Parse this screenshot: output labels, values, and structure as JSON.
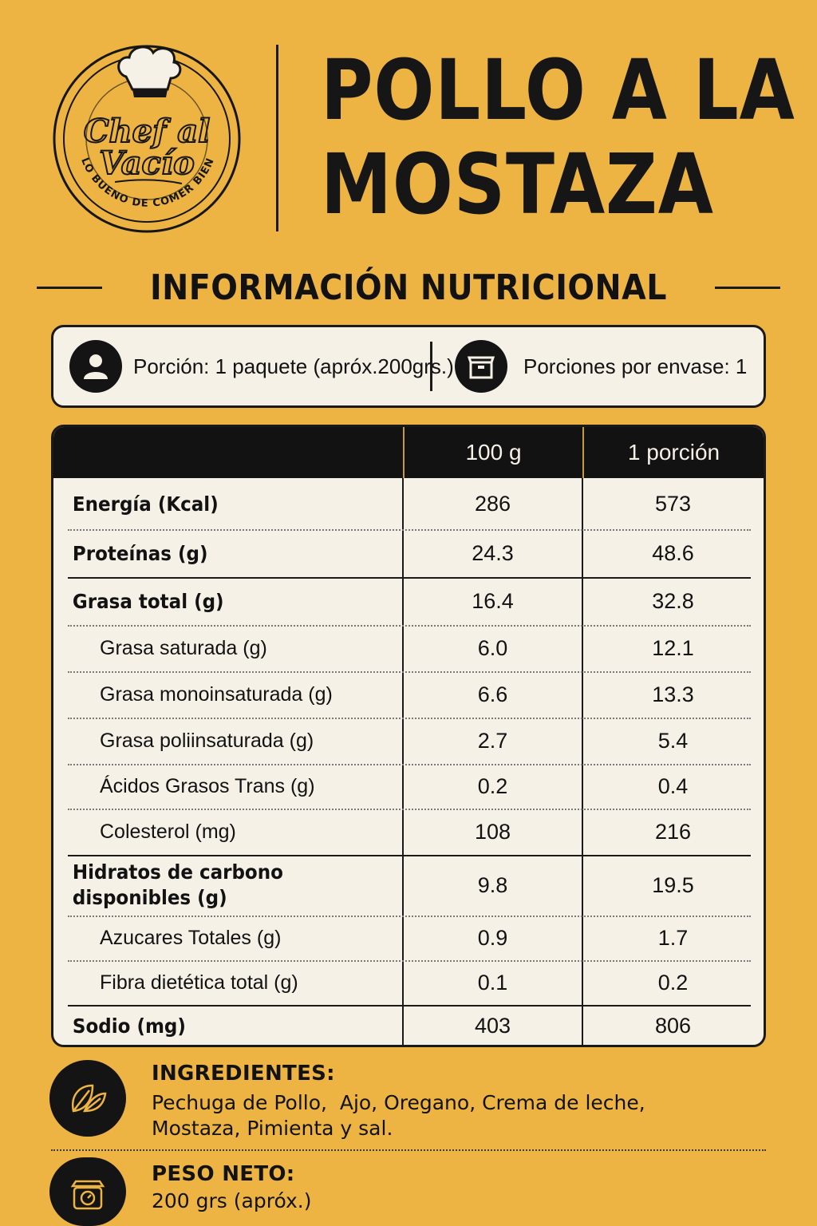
{
  "logo": {
    "brand_line1": "Chef al",
    "brand_line2": "Vacío",
    "tagline": "LO BUENO DE COMER BIEN"
  },
  "title": {
    "line1": "POLLO A LA",
    "line2": "MOSTAZA"
  },
  "section_title": "INFORMACIÓN NUTRICIONAL",
  "serving": {
    "portion_icon": "user-icon",
    "portion_text": "Porción: 1 paquete (apróx.200grs.)",
    "per_pack_icon": "box-icon",
    "per_pack_text": "Porciones por envase: 1"
  },
  "table": {
    "headers": [
      "",
      "100 g",
      "1 porción"
    ],
    "rows": [
      {
        "name": "Energía (Kcal)",
        "v100": "286",
        "vpor": "573"
      },
      {
        "name": "Proteínas (g)",
        "v100": "24.3",
        "vpor": "48.6"
      },
      {
        "name": "Grasa total (g)",
        "v100": "16.4",
        "vpor": "32.8"
      },
      {
        "name": "Grasa saturada (g)",
        "v100": "6.0",
        "vpor": "12.1"
      },
      {
        "name": "Grasa monoinsaturada (g)",
        "v100": "6.6",
        "vpor": "13.3"
      },
      {
        "name": "Grasa poliinsaturada (g)",
        "v100": "2.7",
        "vpor": "5.4"
      },
      {
        "name": "Ácidos Grasos Trans (g)",
        "v100": "0.2",
        "vpor": "0.4"
      },
      {
        "name": "Colesterol (mg)",
        "v100": "108",
        "vpor": "216"
      },
      {
        "name_line1": "Hidratos de carbono",
        "name_line2": "disponibles (g)",
        "v100": "9.8",
        "vpor": "19.5"
      },
      {
        "name": "Azucares Totales (g)",
        "v100": "0.9",
        "vpor": "1.7"
      },
      {
        "name": "Fibra dietética total (g)",
        "v100": "0.1",
        "vpor": "0.2"
      },
      {
        "name": "Sodio (mg)",
        "v100": "403",
        "vpor": "806"
      }
    ]
  },
  "ingredients": {
    "icon": "leaf-icon",
    "label": "INGREDIENTES:",
    "line1": "Pechuga de Pollo,  Ajo, Oregano, Crema de leche,",
    "line2": "Mostaza, Pimienta y sal."
  },
  "net_weight": {
    "icon": "scale-icon",
    "label": "PESO NETO:",
    "value": "200 grs (apróx.)"
  },
  "colors": {
    "background": "#EDB443",
    "panel": "#F6F1E7",
    "ink": "#121212"
  }
}
